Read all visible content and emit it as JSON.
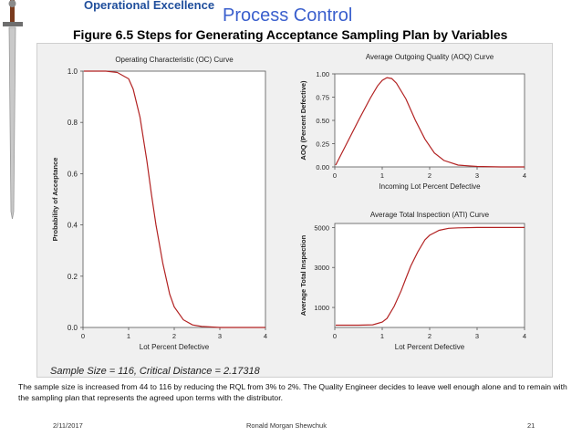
{
  "header": {
    "brand": "Operational Excellence",
    "title": "Process Control",
    "subtitle": "Figure 6.5  Steps for Generating Acceptance Sampling Plan by Variables"
  },
  "chart_data": [
    {
      "type": "line",
      "title": "Operating Characteristic (OC) Curve",
      "xlabel": "Lot Percent Defective",
      "ylabel": "Probability of Acceptance",
      "xlim": [
        0,
        4
      ],
      "ylim": [
        0,
        1
      ],
      "xticks": [
        "0",
        "1",
        "2",
        "3",
        "4"
      ],
      "yticks": [
        "0.0",
        "0.2",
        "0.4",
        "0.6",
        "0.8",
        "1.0"
      ],
      "color": "#b22222",
      "series": [
        {
          "x": [
            0.02,
            0.25,
            0.5,
            0.75,
            1.0,
            1.1,
            1.25,
            1.4,
            1.5,
            1.6,
            1.75,
            1.9,
            2.0,
            2.2,
            2.4,
            2.6,
            3.0,
            3.5,
            4.0
          ],
          "values": [
            1.0,
            1.0,
            1.0,
            0.995,
            0.97,
            0.93,
            0.82,
            0.65,
            0.52,
            0.4,
            0.25,
            0.13,
            0.08,
            0.03,
            0.01,
            0.004,
            0.0,
            0.0,
            0.0
          ]
        }
      ]
    },
    {
      "type": "line",
      "title": "Average Outgoing Quality (AOQ) Curve",
      "xlabel": "Incoming Lot Percent Defective",
      "ylabel": "AOQ (Percent Defective)",
      "xlim": [
        0,
        4
      ],
      "ylim": [
        0,
        1
      ],
      "xticks": [
        "0",
        "1",
        "2",
        "3",
        "4"
      ],
      "yticks": [
        "0.00",
        "0.25",
        "0.50",
        "0.75",
        "1.00"
      ],
      "color": "#b22222",
      "series": [
        {
          "x": [
            0.02,
            0.25,
            0.5,
            0.75,
            0.9,
            1.0,
            1.1,
            1.2,
            1.3,
            1.5,
            1.7,
            1.9,
            2.1,
            2.3,
            2.6,
            3.0,
            3.5,
            4.0
          ],
          "values": [
            0.02,
            0.25,
            0.5,
            0.74,
            0.87,
            0.93,
            0.96,
            0.95,
            0.9,
            0.73,
            0.5,
            0.3,
            0.15,
            0.07,
            0.02,
            0.005,
            0.0,
            0.0
          ]
        }
      ]
    },
    {
      "type": "line",
      "title": "Average Total Inspection (ATI) Curve",
      "xlabel": "Lot Percent Defective",
      "ylabel": "Average Total Inspection",
      "xlim": [
        0,
        4
      ],
      "ylim": [
        0,
        5200
      ],
      "xticks": [
        "0",
        "1",
        "2",
        "3",
        "4"
      ],
      "yticks": [
        "1000",
        "3000",
        "5000"
      ],
      "color": "#b22222",
      "series": [
        {
          "x": [
            0.02,
            0.5,
            0.8,
            1.0,
            1.1,
            1.25,
            1.4,
            1.5,
            1.6,
            1.75,
            1.9,
            2.0,
            2.2,
            2.4,
            2.6,
            3.0,
            3.5,
            4.0
          ],
          "values": [
            116,
            116,
            130,
            270,
            450,
            1050,
            1840,
            2460,
            3060,
            3780,
            4380,
            4610,
            4860,
            4960,
            4980,
            5000,
            5000,
            5000
          ]
        }
      ]
    }
  ],
  "stats": "Sample Size = 116, Critical Distance = 2.17318",
  "caption": "The sample size is increased from 44 to 116 by reducing the RQL from 3% to 2%.  The Quality Engineer decides to leave well enough alone and to remain with the sampling plan that represents the agreed upon terms with the distributor.",
  "footer": {
    "date": "2/11/2017",
    "author": "Ronald Morgan Shewchuk",
    "page": "21"
  },
  "colors": {
    "title": "#3a5fcd",
    "curve": "#b22222",
    "panel": "#f0f0f0"
  }
}
